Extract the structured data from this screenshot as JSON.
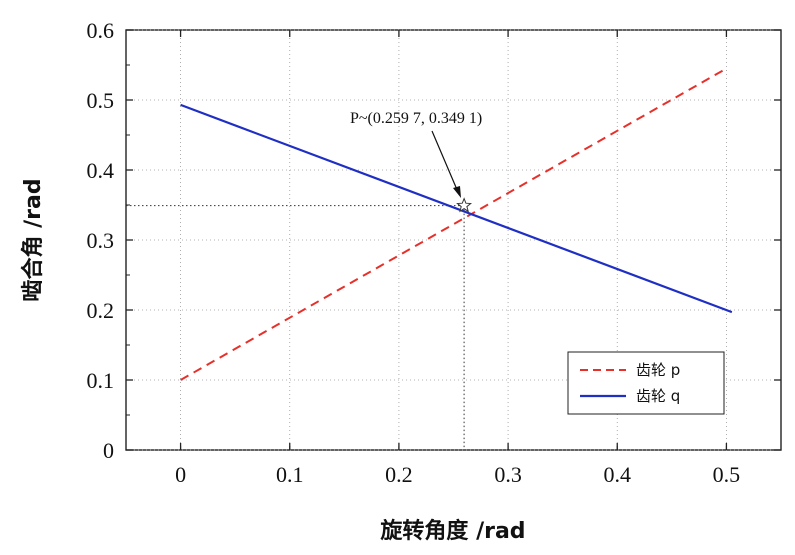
{
  "chart_data": {
    "type": "line",
    "xlabel": "旋转角度 /rad",
    "ylabel": "啮合角 /rad",
    "xlim": [
      -0.05,
      0.55
    ],
    "ylim": [
      0,
      0.6
    ],
    "x_ticks": [
      "0",
      "0.1",
      "0.2",
      "0.3",
      "0.4",
      "0.5"
    ],
    "y_ticks": [
      "0",
      "0.1",
      "0.2",
      "0.3",
      "0.4",
      "0.5",
      "0.6"
    ],
    "grid": true,
    "series": [
      {
        "name": "齿轮 p",
        "style": "dashed",
        "color": "#e8302a",
        "x": [
          0,
          0.5
        ],
        "y": [
          0.1,
          0.545
        ]
      },
      {
        "name": "齿轮 q",
        "style": "solid",
        "color": "#1f2fc4",
        "x": [
          0,
          0.505
        ],
        "y": [
          0.493,
          0.197
        ]
      }
    ],
    "intersection": {
      "x": 0.2597,
      "y": 0.3491,
      "label": "P~(0.259 7, 0.349 1)"
    },
    "legend_position": "bottom-right"
  }
}
